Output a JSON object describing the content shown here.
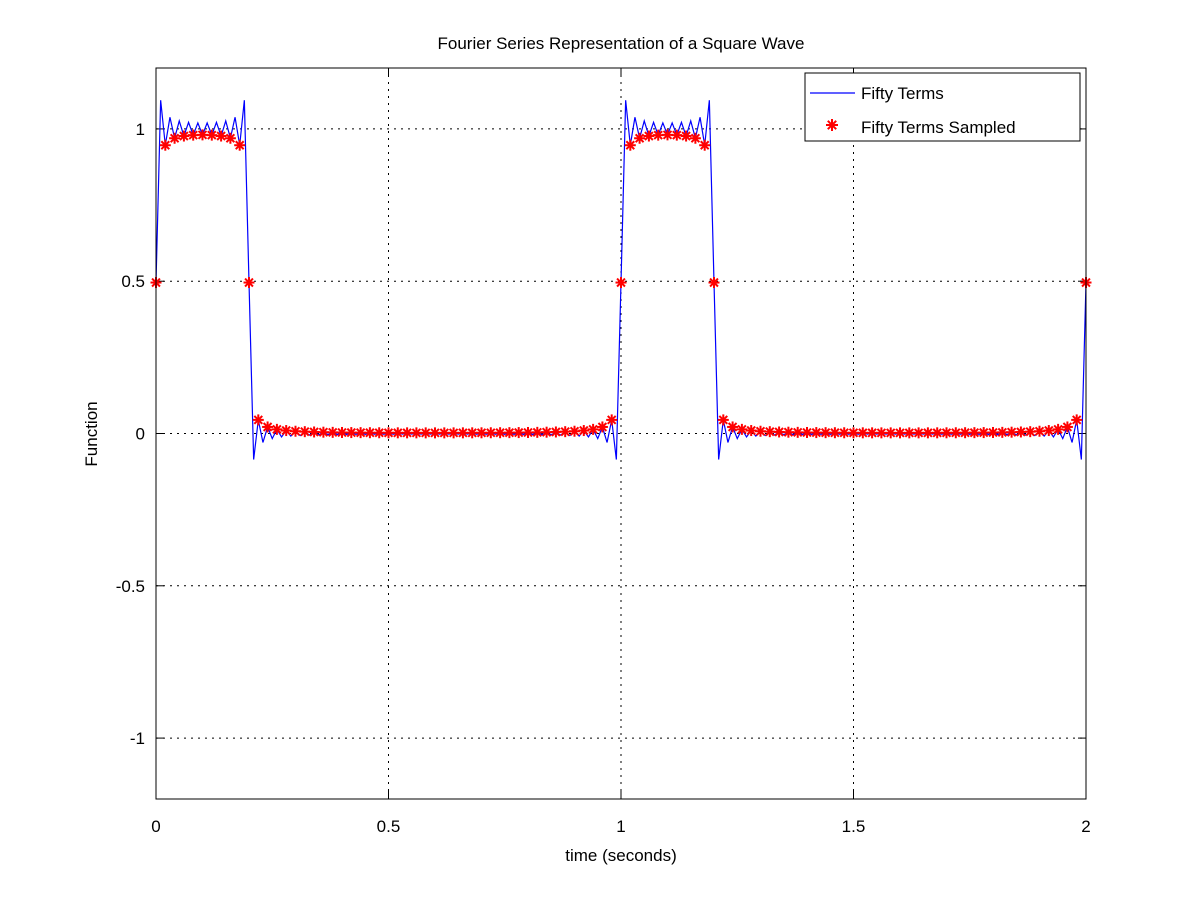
{
  "chart_data": {
    "type": "line",
    "title": "Fourier Series Representation of a Square Wave",
    "xlabel": "time (seconds)",
    "ylabel": "Function",
    "xlim": [
      0,
      2
    ],
    "ylim": [
      -1.2,
      1.2
    ],
    "xticks": [
      0,
      0.5,
      1,
      1.5,
      2
    ],
    "xtick_labels": [
      "0",
      "0.5",
      "1",
      "1.5",
      "2"
    ],
    "yticks": [
      -1,
      -0.5,
      0,
      0.5,
      1
    ],
    "ytick_labels": [
      "-1",
      "-0.5",
      "0",
      "0.5",
      "1"
    ],
    "grid": true,
    "legend_position": "top-right",
    "period": 1,
    "duty_cycle": 0.2,
    "harmonics": 50,
    "sample_interval": 0.02,
    "series": [
      {
        "name": "Fifty Terms",
        "style": "line",
        "color": "#0000ff"
      },
      {
        "name": "Fifty Terms Sampled",
        "style": "asterisk-marker",
        "color": "#ff0000"
      }
    ]
  }
}
